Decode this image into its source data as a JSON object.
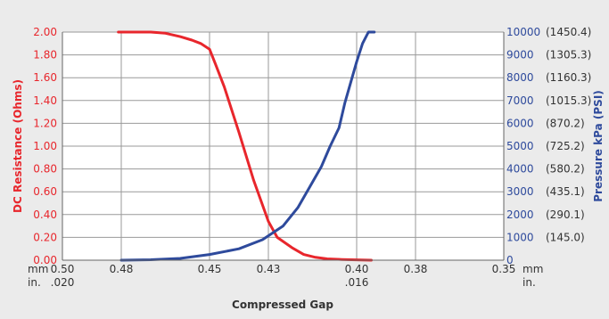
{
  "chart_data": {
    "type": "line",
    "title": "",
    "xlabel": "Compressed Gap",
    "ylabel_left": "DC Resistance  (Ohms)",
    "ylabel_right": "Pressure kPa (PSI)",
    "x_unit_mm": "mm",
    "x_unit_in": "in.",
    "x_unit_mm_right": "mm",
    "x_unit_in_right": "in.",
    "x_ticks_mm": [
      "0.50",
      "0.48",
      "0.45",
      "0.43",
      "0.40",
      "0.38",
      "0.35"
    ],
    "x_ticks_mm_values": [
      0.5,
      0.48,
      0.45,
      0.43,
      0.4,
      0.38,
      0.35
    ],
    "x_ticks_in": [
      {
        "label": ".020",
        "at": 0.5
      },
      {
        "label": ".016",
        "at": 0.4
      }
    ],
    "xlim": [
      0.5,
      0.35
    ],
    "ylim_left": [
      0,
      2.0
    ],
    "y_ticks_left": [
      "0.00",
      "0.20",
      "0.40",
      "0.60",
      "0.80",
      "1.00",
      "1.20",
      "1.40",
      "1.60",
      "1.80",
      "2.00"
    ],
    "ylim_right": [
      0,
      10000
    ],
    "y_ticks_right": [
      {
        "kpa": "0",
        "psi": ""
      },
      {
        "kpa": "1000",
        "psi": "(145.0)"
      },
      {
        "kpa": "2000",
        "psi": "(290.1)"
      },
      {
        "kpa": "3000",
        "psi": "(435.1)"
      },
      {
        "kpa": "4000",
        "psi": "(580.2)"
      },
      {
        "kpa": "5000",
        "psi": "(725.2)"
      },
      {
        "kpa": "6000",
        "psi": "(870.2)"
      },
      {
        "kpa": "7000",
        "psi": "(1015.3)"
      },
      {
        "kpa": "8000",
        "psi": "(1160.3)"
      },
      {
        "kpa": "9000",
        "psi": "(1305.3)"
      },
      {
        "kpa": "10000",
        "psi": "(1450.4)"
      }
    ],
    "grid": true,
    "colors": {
      "resistance": "#e8262c",
      "pressure": "#2e4a9c",
      "background": "#ebebeb",
      "plot_background": "#ffffff",
      "grid": "#999999",
      "text": "#333333"
    },
    "series": [
      {
        "axis": "left",
        "x": [
          0.481,
          0.47,
          0.465,
          0.46,
          0.456,
          0.453,
          0.45,
          0.448,
          0.445,
          0.44,
          0.435,
          0.43,
          0.427,
          0.422,
          0.418,
          0.414,
          0.41,
          0.405,
          0.4,
          0.395
        ],
        "y": [
          2.0,
          2.0,
          1.99,
          1.96,
          1.93,
          1.9,
          1.85,
          1.72,
          1.52,
          1.12,
          0.7,
          0.34,
          0.2,
          0.11,
          0.05,
          0.025,
          0.012,
          0.006,
          0.003,
          0.0
        ]
      },
      {
        "axis": "right",
        "x": [
          0.48,
          0.47,
          0.46,
          0.45,
          0.44,
          0.432,
          0.425,
          0.42,
          0.416,
          0.412,
          0.409,
          0.406,
          0.404,
          0.402,
          0.4,
          0.398,
          0.396,
          0.395,
          0.394
        ],
        "y": [
          0,
          20,
          80,
          250,
          500,
          900,
          1500,
          2300,
          3200,
          4100,
          5000,
          5800,
          6900,
          7800,
          8700,
          9500,
          10000,
          10000,
          10000
        ]
      }
    ]
  }
}
